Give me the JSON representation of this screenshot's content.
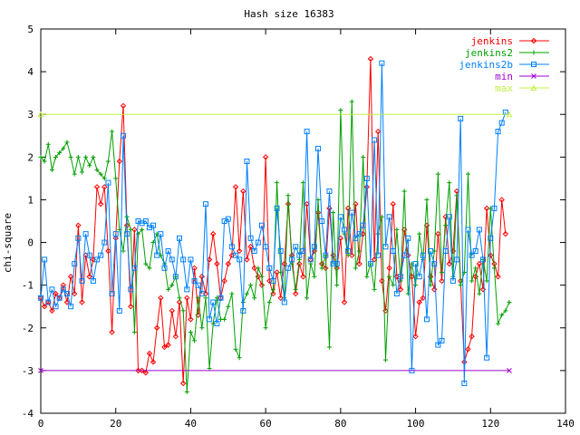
{
  "chart_data": {
    "type": "line",
    "title": "Hash size 16383",
    "xlabel": "",
    "ylabel": "chi-square",
    "xlim": [
      0,
      140
    ],
    "ylim": [
      -4,
      5
    ],
    "x_ticks": [
      0,
      20,
      40,
      60,
      80,
      100,
      120,
      140
    ],
    "y_ticks": [
      -4,
      -3,
      -2,
      -1,
      0,
      1,
      2,
      3,
      4,
      5
    ],
    "grid": false,
    "legend_position": "top-right",
    "series": [
      {
        "name": "jenkins",
        "color": "#ff0000",
        "marker": "diamond",
        "x_start": 0,
        "values": [
          -1.3,
          -1.5,
          -1.4,
          -1.6,
          -1.2,
          -1.3,
          -1.0,
          -1.4,
          -0.8,
          -1.2,
          0.4,
          -1.4,
          -0.3,
          -0.8,
          -0.4,
          1.3,
          0.9,
          1.3,
          -0.2,
          -2.1,
          0.1,
          1.9,
          3.2,
          0.4,
          -1.5,
          0.3,
          -3.0,
          -3.0,
          -3.05,
          -2.6,
          -2.8,
          -2.0,
          -1.3,
          -2.45,
          -2.4,
          -1.6,
          -2.2,
          -1.4,
          -3.3,
          -1.3,
          -1.8,
          -0.6,
          -1.7,
          -0.8,
          -1.2,
          -0.4,
          0.2,
          -0.5,
          -1.3,
          -0.9,
          -0.5,
          -0.3,
          1.3,
          -0.2,
          1.2,
          -0.4,
          -0.1,
          -0.6,
          -0.8,
          -1.0,
          2.0,
          -0.9,
          -1.2,
          -0.7,
          -1.3,
          -0.5,
          0.9,
          -0.3,
          -1.2,
          -0.5,
          -0.8,
          0.9,
          -0.4,
          -0.2,
          0.7,
          -0.5,
          -0.6,
          0.8,
          -0.3,
          -0.6,
          0.1,
          -1.4,
          0.8,
          -0.3,
          0.9,
          -0.5,
          0.2,
          1.3,
          4.3,
          -0.4,
          2.6,
          -0.9,
          -1.6,
          -0.6,
          0.9,
          -0.8,
          -1.1,
          0.3,
          -0.3,
          -0.8,
          -2.2,
          -1.4,
          -1.3,
          0.4,
          -0.8,
          -1.1,
          0.2,
          -0.9,
          0.6,
          -0.5,
          -0.2,
          1.2,
          -0.9,
          -2.8,
          -2.5,
          -2.2,
          -0.8,
          -0.5,
          -1.1,
          0.8,
          -0.3,
          -0.5,
          -0.8,
          1.0,
          0.2
        ]
      },
      {
        "name": "jenkins2",
        "color": "#00a000",
        "marker": "plus",
        "x_start": 0,
        "values": [
          2.0,
          1.9,
          2.3,
          1.7,
          2.0,
          2.1,
          2.2,
          2.35,
          2.0,
          1.6,
          2.0,
          1.65,
          2.0,
          1.8,
          2.0,
          1.7,
          1.6,
          1.5,
          1.9,
          2.6,
          1.5,
          0.3,
          -0.2,
          0.6,
          0.3,
          -2.1,
          0.2,
          0.3,
          -0.5,
          -0.6,
          0.0,
          0.2,
          -0.3,
          -0.5,
          -1.1,
          -1.0,
          -0.8,
          -1.3,
          -1.6,
          -3.5,
          -2.1,
          -2.3,
          -1.3,
          -2.0,
          -1.3,
          -2.95,
          -1.9,
          -1.3,
          -1.8,
          -1.8,
          -1.5,
          -1.2,
          -2.5,
          -2.7,
          -1.4,
          -1.2,
          -1.0,
          -1.3,
          -0.6,
          -0.8,
          -2.0,
          -1.4,
          -1.1,
          1.4,
          -0.7,
          -1.3,
          1.1,
          -0.5,
          -1.1,
          -0.4,
          1.4,
          -1.3,
          -0.5,
          -0.8,
          1.0,
          -0.6,
          -0.3,
          -2.45,
          0.7,
          -1.0,
          3.1,
          0.2,
          -0.3,
          3.3,
          -0.6,
          -0.2,
          2.0,
          -0.8,
          -0.5,
          -1.1,
          0.2,
          0.6,
          -2.75,
          -0.8,
          -1.0,
          0.3,
          -0.9,
          1.2,
          -1.2,
          -0.5,
          -1.0,
          0.2,
          -0.4,
          1.0,
          -1.0,
          -0.2,
          1.6,
          -0.7,
          0.4,
          1.4,
          -0.8,
          1.1,
          -1.0,
          -0.7,
          1.6,
          -0.9,
          -0.6,
          -1.2,
          -0.4,
          -0.9,
          0.8,
          -0.6,
          -1.9,
          -1.7,
          -1.6,
          -1.4
        ]
      },
      {
        "name": "jenkins2b",
        "color": "#0080ff",
        "marker": "square",
        "x_start": 0,
        "values": [
          -1.3,
          -0.4,
          -1.4,
          -1.1,
          -1.5,
          -1.3,
          -1.1,
          -1.2,
          -1.5,
          -0.5,
          0.1,
          -0.9,
          0.2,
          -0.3,
          -0.9,
          -0.4,
          -0.3,
          0.0,
          1.4,
          -1.2,
          0.2,
          -1.6,
          2.5,
          0.2,
          -1.1,
          -0.6,
          0.5,
          0.45,
          0.5,
          0.35,
          0.4,
          -0.3,
          0.2,
          -0.6,
          -0.2,
          -0.4,
          -0.8,
          0.1,
          -0.4,
          -1.1,
          -0.4,
          -0.9,
          -1.0,
          -1.2,
          0.9,
          -1.8,
          -1.4,
          -1.9,
          -1.3,
          0.5,
          0.55,
          -0.1,
          -0.3,
          -0.4,
          -1.6,
          1.9,
          0.1,
          -0.2,
          0.0,
          0.4,
          -0.1,
          -0.6,
          -0.9,
          0.8,
          -0.2,
          -1.4,
          -0.6,
          -0.4,
          -0.1,
          -0.3,
          -0.2,
          2.6,
          -0.4,
          -0.1,
          2.2,
          0.5,
          -0.3,
          1.2,
          -0.5,
          -0.5,
          0.6,
          0.3,
          -0.2,
          0.7,
          0.1,
          0.2,
          0.4,
          1.5,
          -0.5,
          2.4,
          -0.3,
          4.2,
          -0.1,
          0.6,
          -0.2,
          -1.2,
          -0.8,
          -0.3,
          0.1,
          -3.0,
          -0.5,
          -0.8,
          -0.3,
          -1.8,
          -0.2,
          -0.5,
          -2.4,
          -2.3,
          -0.2,
          0.6,
          -0.9,
          -0.4,
          2.9,
          -3.3,
          0.3,
          -0.3,
          -0.2,
          0.3,
          -0.4,
          -2.7,
          0.1,
          0.8,
          2.6,
          2.8,
          3.05
        ]
      },
      {
        "name": "min",
        "color": "#a000d0",
        "marker": "cross",
        "x": [
          0,
          125
        ],
        "values": [
          -3.0,
          -3.0
        ]
      },
      {
        "name": "max",
        "color": "#c0f040",
        "marker": "triangle",
        "x": [
          0,
          125
        ],
        "values": [
          3.0,
          3.0
        ]
      }
    ]
  }
}
